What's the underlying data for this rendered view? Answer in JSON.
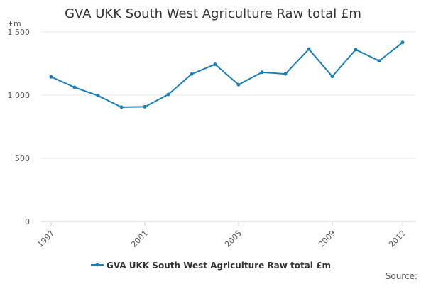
{
  "chart_data": {
    "type": "line",
    "title": "GVA UKK South West Agriculture Raw total £m",
    "ylabel": "£m",
    "xlabel": "",
    "x": [
      1997,
      1998,
      1999,
      2000,
      2001,
      2002,
      2003,
      2004,
      2005,
      2006,
      2007,
      2008,
      2009,
      2010,
      2011,
      2012
    ],
    "x_tick_labels": [
      "1997",
      "2001",
      "2005",
      "2009",
      "2012"
    ],
    "x_tick_values": [
      1997,
      2001,
      2005,
      2009,
      2012
    ],
    "y_tick_labels": [
      "0",
      "500",
      "1 000",
      "1 500"
    ],
    "y_tick_values": [
      0,
      500,
      1000,
      1500
    ],
    "ylim": [
      0,
      1500
    ],
    "xlim": [
      1997,
      2012
    ],
    "grid": "horizontal",
    "legend_position": "bottom",
    "series": [
      {
        "name": "GVA UKK South West Agriculture Raw total £m",
        "color": "#1a7fb8",
        "values": [
          1145,
          1062,
          996,
          905,
          908,
          1005,
          1167,
          1244,
          1083,
          1181,
          1168,
          1364,
          1148,
          1360,
          1271,
          1417
        ]
      }
    ]
  },
  "footer": {
    "source_label": "Source:"
  }
}
